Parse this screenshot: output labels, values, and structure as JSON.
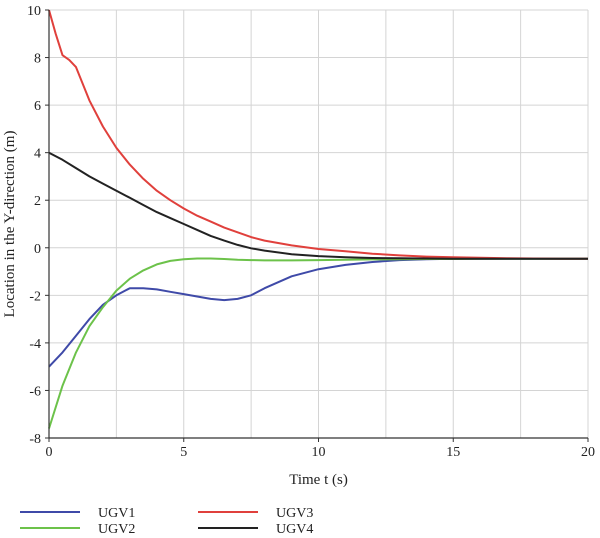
{
  "chart_data": {
    "type": "line",
    "title": "",
    "xlabel": "Time t (s)",
    "ylabel": "Location in the Y-direction (m)",
    "xlim": [
      0,
      20
    ],
    "ylim": [
      -8,
      10
    ],
    "x_ticks": [
      "0",
      "5",
      "10",
      "15",
      "20"
    ],
    "y_ticks": [
      "10",
      "8",
      "6",
      "4",
      "2",
      "0",
      "-2",
      "-4",
      "-6",
      "-8"
    ],
    "grid": true,
    "legend_position": "bottom-left",
    "series": [
      {
        "name": "UGV1",
        "color": "#3f4aa8",
        "x": [
          0,
          0.5,
          1,
          1.5,
          2,
          2.5,
          3,
          3.5,
          4,
          4.5,
          5,
          5.5,
          6,
          6.5,
          7,
          7.5,
          8,
          9,
          10,
          11,
          12,
          13,
          14,
          15,
          16,
          17,
          18,
          19,
          20
        ],
        "y": [
          -5.0,
          -4.4,
          -3.7,
          -3.0,
          -2.4,
          -2.0,
          -1.7,
          -1.7,
          -1.75,
          -1.85,
          -1.95,
          -2.05,
          -2.15,
          -2.2,
          -2.15,
          -2.0,
          -1.7,
          -1.2,
          -0.9,
          -0.72,
          -0.6,
          -0.52,
          -0.48,
          -0.46,
          -0.46,
          -0.46,
          -0.46,
          -0.46,
          -0.46
        ]
      },
      {
        "name": "UGV2",
        "color": "#6cc24a",
        "x": [
          0,
          0.5,
          1,
          1.5,
          2,
          2.5,
          3,
          3.5,
          4,
          4.5,
          5,
          5.5,
          6,
          6.5,
          7,
          7.5,
          8,
          9,
          10,
          11,
          12,
          13,
          14,
          15,
          16,
          17,
          18,
          19,
          20
        ],
        "y": [
          -7.6,
          -5.8,
          -4.4,
          -3.3,
          -2.5,
          -1.8,
          -1.3,
          -0.95,
          -0.7,
          -0.55,
          -0.48,
          -0.45,
          -0.45,
          -0.47,
          -0.5,
          -0.52,
          -0.53,
          -0.53,
          -0.52,
          -0.5,
          -0.49,
          -0.48,
          -0.47,
          -0.47,
          -0.46,
          -0.46,
          -0.46,
          -0.46,
          -0.46
        ]
      },
      {
        "name": "UGV3",
        "color": "#e0403c",
        "x": [
          0,
          0.25,
          0.5,
          0.75,
          1,
          1.25,
          1.5,
          2,
          2.5,
          3,
          3.5,
          4,
          4.5,
          5,
          5.5,
          6,
          6.5,
          7,
          7.5,
          8,
          9,
          10,
          11,
          12,
          13,
          14,
          15,
          16,
          17,
          18,
          19,
          20
        ],
        "y": [
          10.0,
          9.0,
          8.1,
          7.9,
          7.6,
          6.9,
          6.2,
          5.1,
          4.2,
          3.5,
          2.9,
          2.4,
          2.0,
          1.65,
          1.35,
          1.1,
          0.85,
          0.65,
          0.45,
          0.3,
          0.1,
          -0.05,
          -0.15,
          -0.25,
          -0.32,
          -0.37,
          -0.4,
          -0.42,
          -0.44,
          -0.45,
          -0.46,
          -0.46
        ]
      },
      {
        "name": "UGV4",
        "color": "#222222",
        "x": [
          0,
          0.5,
          1,
          1.5,
          2,
          2.5,
          3,
          3.5,
          4,
          4.5,
          5,
          5.5,
          6,
          6.5,
          7,
          7.5,
          8,
          9,
          10,
          11,
          12,
          13,
          14,
          15,
          16,
          17,
          18,
          19,
          20
        ],
        "y": [
          4.0,
          3.7,
          3.35,
          3.0,
          2.7,
          2.4,
          2.1,
          1.8,
          1.5,
          1.25,
          1.0,
          0.75,
          0.5,
          0.3,
          0.12,
          -0.02,
          -0.12,
          -0.27,
          -0.35,
          -0.4,
          -0.43,
          -0.44,
          -0.45,
          -0.46,
          -0.46,
          -0.46,
          -0.46,
          -0.46,
          -0.46
        ]
      }
    ]
  },
  "axis_color": "#333333",
  "grid_color": "#d4d4d4"
}
